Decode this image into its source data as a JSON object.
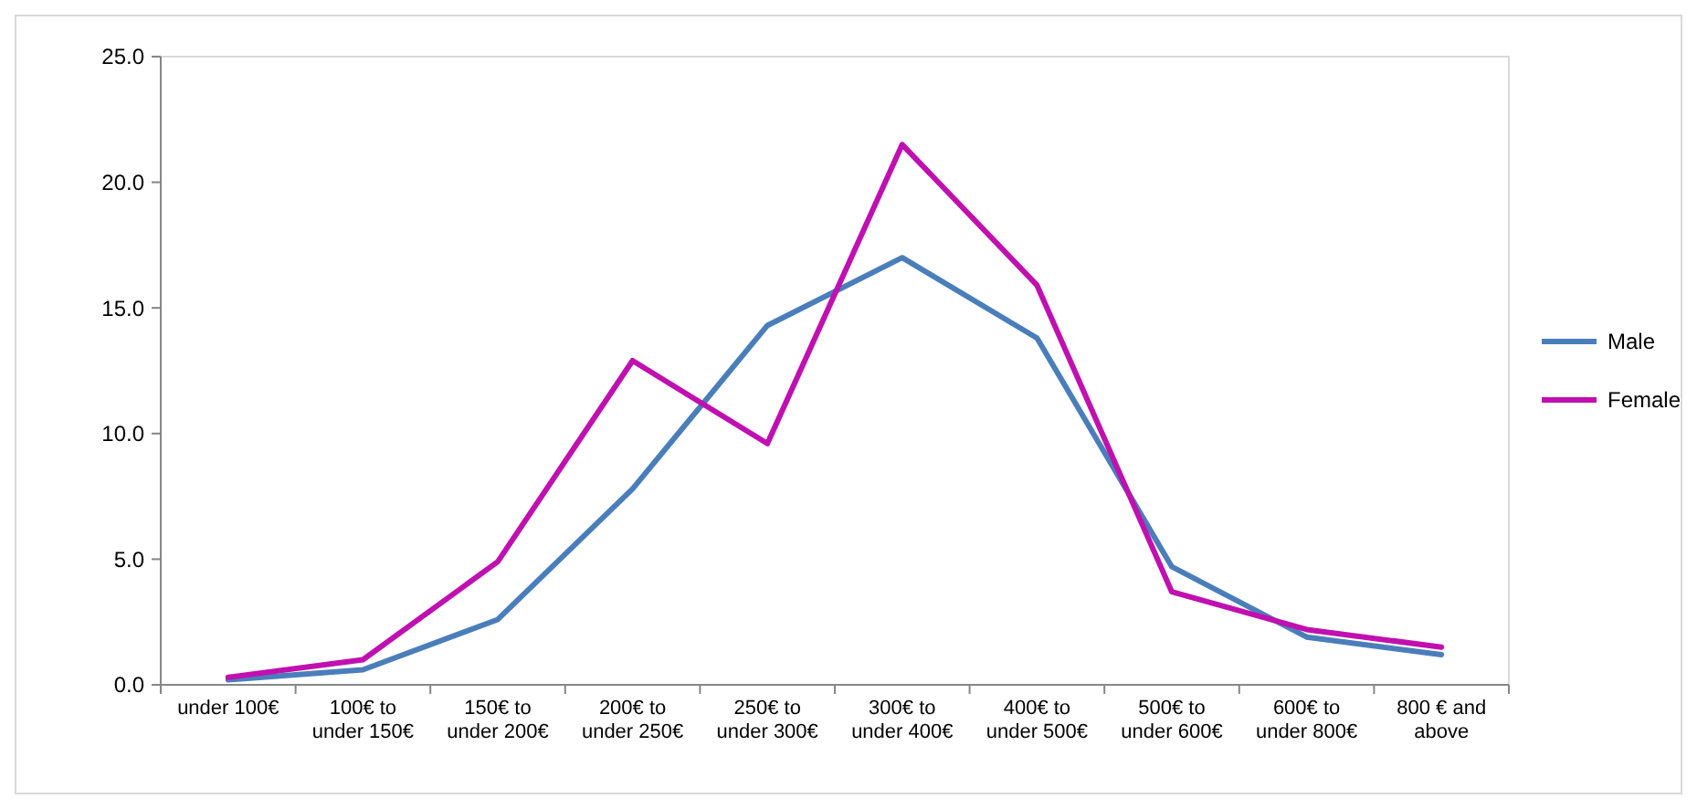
{
  "chart_data": {
    "type": "line",
    "categories": [
      "under 100€",
      "100€ to under 150€",
      "150€ to under 200€",
      "200€ to under 250€",
      "250€ to under 300€",
      "300€ to under 400€",
      "400€ to under 500€",
      "500€ to under 600€",
      "600€ to under 800€",
      "800 € and above"
    ],
    "series": [
      {
        "name": "Male",
        "color": "#4a7ebb",
        "values": [
          0.2,
          0.6,
          2.6,
          7.8,
          14.3,
          17.0,
          13.8,
          4.7,
          1.9,
          1.2
        ]
      },
      {
        "name": "Female",
        "color": "#c010b0",
        "values": [
          0.3,
          1.0,
          4.9,
          12.9,
          9.6,
          21.5,
          15.9,
          3.7,
          2.2,
          1.5
        ]
      }
    ],
    "ylim": [
      0,
      25
    ],
    "yticks": [
      {
        "value": 0,
        "label": "0.0"
      },
      {
        "value": 5,
        "label": "5.0"
      },
      {
        "value": 10,
        "label": "10.0"
      },
      {
        "value": 15,
        "label": "15.0"
      },
      {
        "value": 20,
        "label": "20.0"
      },
      {
        "value": 25,
        "label": "25.0"
      }
    ],
    "grid": false,
    "legend": "right",
    "marker": "none",
    "line_style": "solid"
  }
}
